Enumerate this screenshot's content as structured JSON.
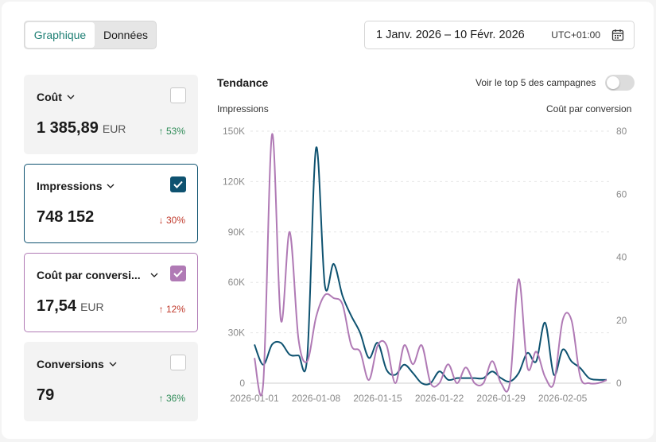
{
  "view_toggle": {
    "graph_label": "Graphique",
    "data_label": "Données"
  },
  "date_range": {
    "text": "1 Janv. 2026 – 10 Févr. 2026",
    "timezone": "UTC+01:00",
    "icon": "calendar-icon"
  },
  "metrics": [
    {
      "label": "Coût",
      "value": "1 385,89",
      "unit": "EUR",
      "delta": "↑ 53%",
      "checked": false
    },
    {
      "label": "Impressions",
      "value": "748 152",
      "unit": "",
      "delta": "↓ 30%",
      "checked": true
    },
    {
      "label": "Coût par conversi...",
      "value": "17,54",
      "unit": "EUR",
      "delta": "↑ 12%",
      "checked": true
    },
    {
      "label": "Conversions",
      "value": "79",
      "unit": "",
      "delta": "↑ 36%",
      "checked": false
    }
  ],
  "chart_header": {
    "title": "Tendance",
    "top5_label": "Voir le top 5 des campagnes",
    "left_axis_title": "Impressions",
    "right_axis_title": "Coût par conversion"
  },
  "colors": {
    "impressions": "#0e5270",
    "cost_per_conversion": "#b07ab5",
    "grid": "#e6e6e6"
  },
  "chart_data": {
    "type": "line",
    "title": "Tendance",
    "xlabel": "",
    "x_tick_labels": [
      "2026-01-01",
      "2026-01-08",
      "2026-01-15",
      "2026-01-22",
      "2026-01-29",
      "2026-02-05"
    ],
    "x_start": "2026-01-01",
    "y_left": {
      "label": "Impressions",
      "ylim": [
        0,
        150000
      ],
      "ticks": [
        "0",
        "30K",
        "60K",
        "90K",
        "120K",
        "150K"
      ]
    },
    "y_right": {
      "label": "Coût par conversion",
      "ylim": [
        0,
        80
      ],
      "ticks": [
        "0",
        "20",
        "40",
        "60",
        "80"
      ]
    },
    "grid": true,
    "series": [
      {
        "name": "Impressions",
        "axis": "left",
        "values": [
          23000,
          11000,
          23000,
          24000,
          17000,
          16500,
          16000,
          140000,
          58000,
          71000,
          52000,
          40000,
          30000,
          15000,
          24000,
          8000,
          5000,
          11000,
          6000,
          0,
          0,
          7000,
          2000,
          3000,
          3000,
          3000,
          3000,
          7000,
          3000,
          1000,
          6000,
          18000,
          13000,
          36000,
          5000,
          20000,
          13000,
          9000,
          3000,
          2000,
          2000
        ]
      },
      {
        "name": "Coût par conversion",
        "axis": "right",
        "values": [
          8,
          0,
          79,
          20,
          48,
          14,
          7,
          21,
          28,
          27,
          25,
          12,
          10,
          1,
          12,
          12,
          0,
          12,
          6,
          12,
          0,
          0,
          6,
          0,
          5,
          0,
          0,
          7,
          0,
          0,
          33,
          5,
          10,
          2,
          0,
          20,
          20,
          2,
          0,
          0,
          1
        ]
      }
    ]
  }
}
